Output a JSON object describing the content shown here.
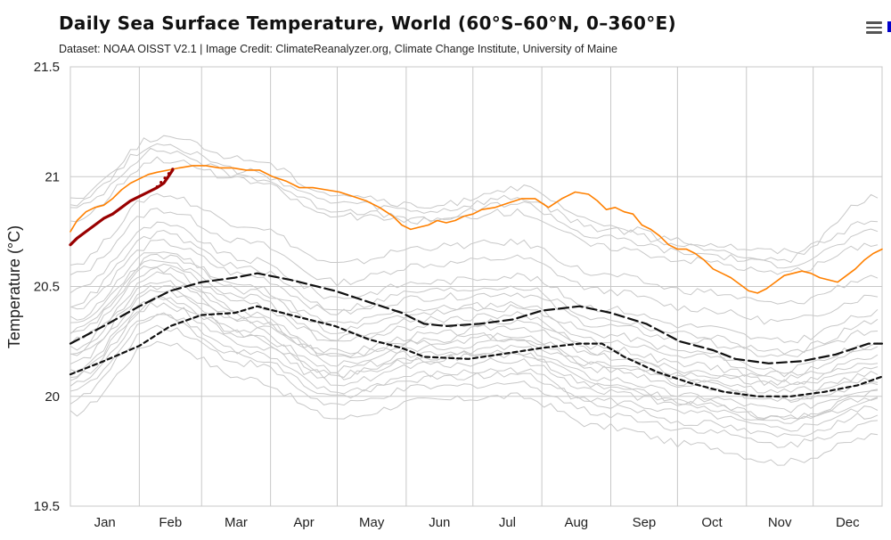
{
  "header": {
    "title": "Daily Sea Surface Temperature, World (60°S–60°N, 0–360°E)",
    "subtitle": "Dataset: NOAA OISST V2.1 | Image Credit: ClimateReanalyzer.org, Climate Change Institute, University of Maine"
  },
  "toolbar": {
    "menu_icon": "hamburger-menu-icon"
  },
  "chart_data": {
    "type": "line",
    "ylabel": "Temperature (°C)",
    "ylim": [
      19.5,
      21.5
    ],
    "xlim": [
      1,
      366
    ],
    "yticks": [
      19.5,
      20,
      20.5,
      21,
      21.5
    ],
    "month_labels": [
      "Jan",
      "Feb",
      "Mar",
      "Apr",
      "May",
      "Jun",
      "Jul",
      "Aug",
      "Sep",
      "Oct",
      "Nov",
      "Dec"
    ],
    "month_starts": [
      1,
      32,
      60,
      91,
      121,
      152,
      182,
      213,
      244,
      274,
      305,
      335
    ],
    "grid": true,
    "colors": {
      "current": "#990000",
      "previous": "#ff8000",
      "mean_upper": "#111111",
      "mean_lower": "#111111",
      "background_years": "#c8c8c8"
    },
    "series": [
      {
        "key": "current",
        "style": "solid-thick",
        "points": [
          [
            1,
            20.69
          ],
          [
            4,
            20.72
          ],
          [
            8,
            20.75
          ],
          [
            12,
            20.78
          ],
          [
            16,
            20.81
          ],
          [
            20,
            20.83
          ],
          [
            24,
            20.86
          ],
          [
            28,
            20.89
          ],
          [
            32,
            20.91
          ],
          [
            36,
            20.93
          ],
          [
            40,
            20.95
          ],
          [
            43,
            20.97
          ],
          [
            45,
            21.0
          ],
          [
            47,
            21.03
          ]
        ]
      },
      {
        "key": "previous",
        "style": "solid",
        "points": [
          [
            1,
            20.75
          ],
          [
            4,
            20.8
          ],
          [
            8,
            20.84
          ],
          [
            12,
            20.86
          ],
          [
            16,
            20.87
          ],
          [
            20,
            20.9
          ],
          [
            24,
            20.94
          ],
          [
            28,
            20.97
          ],
          [
            32,
            20.99
          ],
          [
            36,
            21.01
          ],
          [
            40,
            21.02
          ],
          [
            45,
            21.03
          ],
          [
            50,
            21.04
          ],
          [
            56,
            21.05
          ],
          [
            62,
            21.05
          ],
          [
            68,
            21.04
          ],
          [
            74,
            21.04
          ],
          [
            80,
            21.03
          ],
          [
            86,
            21.03
          ],
          [
            92,
            21.0
          ],
          [
            98,
            20.98
          ],
          [
            104,
            20.95
          ],
          [
            110,
            20.95
          ],
          [
            116,
            20.94
          ],
          [
            122,
            20.93
          ],
          [
            128,
            20.91
          ],
          [
            134,
            20.89
          ],
          [
            140,
            20.86
          ],
          [
            146,
            20.82
          ],
          [
            150,
            20.78
          ],
          [
            154,
            20.76
          ],
          [
            158,
            20.77
          ],
          [
            162,
            20.78
          ],
          [
            166,
            20.8
          ],
          [
            170,
            20.79
          ],
          [
            174,
            20.8
          ],
          [
            178,
            20.82
          ],
          [
            182,
            20.83
          ],
          [
            186,
            20.85
          ],
          [
            192,
            20.86
          ],
          [
            198,
            20.88
          ],
          [
            204,
            20.9
          ],
          [
            210,
            20.9
          ],
          [
            216,
            20.86
          ],
          [
            222,
            20.9
          ],
          [
            228,
            20.93
          ],
          [
            234,
            20.92
          ],
          [
            238,
            20.89
          ],
          [
            242,
            20.85
          ],
          [
            246,
            20.86
          ],
          [
            250,
            20.84
          ],
          [
            254,
            20.83
          ],
          [
            258,
            20.78
          ],
          [
            262,
            20.76
          ],
          [
            266,
            20.73
          ],
          [
            270,
            20.69
          ],
          [
            274,
            20.67
          ],
          [
            278,
            20.67
          ],
          [
            282,
            20.65
          ],
          [
            286,
            20.62
          ],
          [
            290,
            20.58
          ],
          [
            294,
            20.56
          ],
          [
            298,
            20.54
          ],
          [
            302,
            20.51
          ],
          [
            306,
            20.48
          ],
          [
            310,
            20.47
          ],
          [
            314,
            20.49
          ],
          [
            318,
            20.52
          ],
          [
            322,
            20.55
          ],
          [
            326,
            20.56
          ],
          [
            330,
            20.57
          ],
          [
            334,
            20.56
          ],
          [
            338,
            20.54
          ],
          [
            342,
            20.53
          ],
          [
            346,
            20.52
          ],
          [
            350,
            20.55
          ],
          [
            354,
            20.58
          ],
          [
            358,
            20.62
          ],
          [
            362,
            20.65
          ],
          [
            366,
            20.67
          ]
        ]
      },
      {
        "key": "mean_upper",
        "style": "long-dash",
        "points": [
          [
            1,
            20.24
          ],
          [
            16,
            20.32
          ],
          [
            32,
            20.41
          ],
          [
            46,
            20.48
          ],
          [
            60,
            20.52
          ],
          [
            75,
            20.54
          ],
          [
            85,
            20.56
          ],
          [
            100,
            20.53
          ],
          [
            120,
            20.48
          ],
          [
            135,
            20.43
          ],
          [
            150,
            20.38
          ],
          [
            160,
            20.33
          ],
          [
            170,
            20.32
          ],
          [
            185,
            20.33
          ],
          [
            200,
            20.35
          ],
          [
            213,
            20.39
          ],
          [
            230,
            20.41
          ],
          [
            244,
            20.38
          ],
          [
            260,
            20.33
          ],
          [
            275,
            20.25
          ],
          [
            290,
            20.21
          ],
          [
            300,
            20.17
          ],
          [
            315,
            20.15
          ],
          [
            330,
            20.16
          ],
          [
            345,
            20.19
          ],
          [
            360,
            20.24
          ],
          [
            366,
            20.24
          ]
        ]
      },
      {
        "key": "mean_lower",
        "style": "short-dash",
        "points": [
          [
            1,
            20.1
          ],
          [
            16,
            20.16
          ],
          [
            32,
            20.23
          ],
          [
            46,
            20.32
          ],
          [
            60,
            20.37
          ],
          [
            75,
            20.38
          ],
          [
            85,
            20.41
          ],
          [
            100,
            20.37
          ],
          [
            120,
            20.32
          ],
          [
            135,
            20.26
          ],
          [
            150,
            20.22
          ],
          [
            160,
            20.18
          ],
          [
            180,
            20.17
          ],
          [
            200,
            20.2
          ],
          [
            213,
            20.22
          ],
          [
            230,
            20.24
          ],
          [
            240,
            20.24
          ],
          [
            250,
            20.18
          ],
          [
            265,
            20.11
          ],
          [
            280,
            20.06
          ],
          [
            295,
            20.02
          ],
          [
            310,
            20.0
          ],
          [
            325,
            20.0
          ],
          [
            340,
            20.02
          ],
          [
            355,
            20.05
          ],
          [
            366,
            20.09
          ]
        ]
      }
    ],
    "background_years": [
      [
        20.25,
        20.58,
        20.38,
        20.2,
        20.28,
        20.32,
        20.18,
        20.1,
        20.05,
        20.12
      ],
      [
        20.3,
        20.62,
        20.45,
        20.27,
        20.35,
        20.37,
        20.22,
        20.14,
        20.08,
        20.18
      ],
      [
        20.18,
        20.5,
        20.33,
        20.15,
        20.22,
        20.25,
        20.12,
        20.05,
        19.98,
        20.05
      ],
      [
        20.4,
        20.7,
        20.55,
        20.38,
        20.45,
        20.47,
        20.32,
        20.25,
        20.18,
        20.3
      ],
      [
        20.12,
        20.45,
        20.28,
        20.1,
        20.18,
        20.2,
        20.05,
        19.98,
        19.9,
        20.0
      ],
      [
        20.05,
        20.38,
        20.2,
        20.02,
        20.1,
        20.12,
        19.98,
        19.92,
        19.85,
        19.95
      ],
      [
        20.48,
        20.78,
        20.62,
        20.45,
        20.52,
        20.55,
        20.4,
        20.32,
        20.25,
        20.38
      ],
      [
        19.98,
        20.32,
        20.15,
        19.96,
        20.04,
        20.06,
        19.92,
        19.85,
        19.78,
        19.88
      ],
      [
        20.35,
        20.66,
        20.5,
        20.33,
        20.4,
        20.42,
        20.28,
        20.2,
        20.12,
        20.24
      ],
      [
        20.22,
        20.55,
        20.36,
        20.18,
        20.26,
        20.28,
        20.15,
        20.08,
        20.02,
        20.1
      ],
      [
        20.55,
        20.85,
        20.7,
        20.52,
        20.6,
        20.63,
        20.48,
        20.4,
        20.34,
        20.46
      ],
      [
        20.15,
        20.48,
        20.3,
        20.12,
        20.2,
        20.22,
        20.08,
        20.0,
        19.94,
        20.04
      ],
      [
        20.08,
        20.42,
        20.24,
        20.06,
        20.14,
        20.16,
        20.02,
        19.95,
        19.88,
        19.98
      ],
      [
        20.42,
        20.74,
        20.58,
        20.4,
        20.48,
        20.5,
        20.35,
        20.28,
        20.2,
        20.34
      ],
      [
        19.92,
        20.25,
        20.08,
        19.9,
        19.98,
        20.0,
        19.86,
        19.78,
        19.7,
        19.82
      ],
      [
        20.28,
        20.6,
        20.42,
        20.25,
        20.32,
        20.34,
        20.2,
        20.12,
        20.06,
        20.15
      ],
      [
        20.02,
        20.36,
        20.18,
        20.0,
        20.08,
        20.1,
        19.96,
        19.88,
        19.82,
        19.92
      ],
      [
        20.6,
        20.92,
        20.78,
        20.6,
        20.68,
        20.7,
        20.55,
        20.48,
        20.42,
        20.55
      ],
      [
        20.2,
        20.52,
        20.35,
        20.17,
        20.25,
        20.27,
        20.14,
        20.06,
        19.99,
        20.08
      ],
      [
        20.1,
        20.44,
        20.27,
        20.09,
        20.17,
        20.19,
        20.04,
        19.97,
        19.9,
        20.02
      ],
      [
        20.32,
        20.64,
        20.48,
        20.3,
        20.38,
        20.4,
        20.25,
        20.18,
        20.1,
        20.22
      ],
      [
        20.85,
        21.12,
        21.0,
        20.85,
        20.8,
        20.88,
        20.72,
        20.65,
        20.6,
        20.75
      ],
      [
        20.9,
        21.18,
        21.08,
        20.92,
        20.86,
        20.95,
        20.78,
        20.7,
        20.66,
        20.8
      ],
      [
        20.8,
        21.08,
        20.98,
        20.82,
        20.8,
        20.84,
        20.68,
        20.62,
        20.56,
        20.7
      ],
      [
        20.88,
        21.15,
        21.02,
        20.88,
        20.84,
        20.9,
        20.76,
        20.68,
        20.62,
        20.92
      ]
    ]
  }
}
